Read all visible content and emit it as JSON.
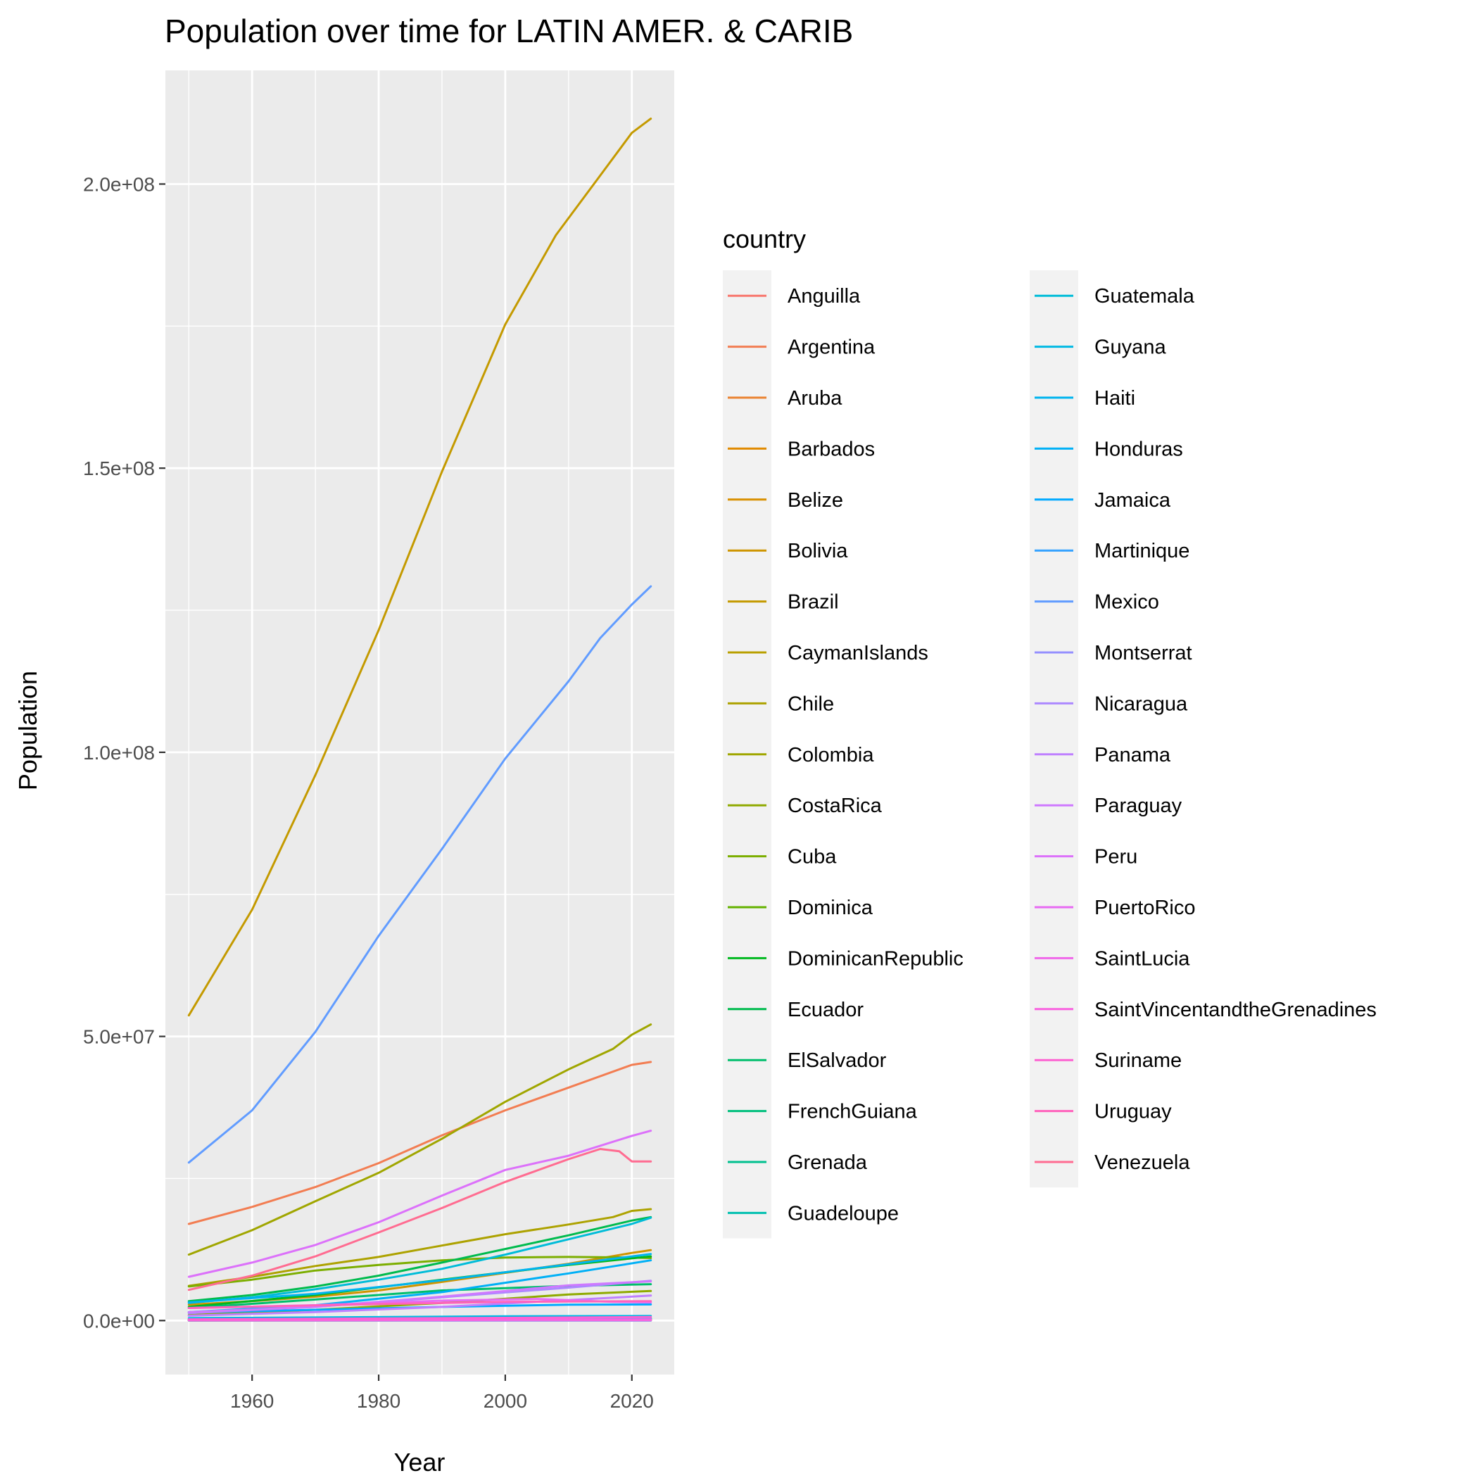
{
  "chart_data": {
    "type": "line",
    "title": "Population over time for LATIN AMER. & CARIB",
    "xlabel": "Year",
    "ylabel": "Population",
    "xlim": [
      1946.3,
      2026.7
    ],
    "ylim": [
      -9500000,
      220000000
    ],
    "x_ticks": [
      1960,
      1980,
      2000,
      2020
    ],
    "x_tick_labels": [
      "1960",
      "1980",
      "2000",
      "2020"
    ],
    "y_ticks": [
      0,
      50000000,
      100000000,
      150000000,
      200000000
    ],
    "y_tick_labels": [
      "0.0e+00",
      "5.0e+07",
      "1.0e+08",
      "1.5e+08",
      "2.0e+08"
    ],
    "grid": true,
    "legend_title": "country",
    "legend_position": "right",
    "legend_columns": 2,
    "series": [
      {
        "name": "Anguilla",
        "color": "#F8766D",
        "x": [
          1950,
          1990,
          2023
        ],
        "y": [
          6000,
          9000,
          16000
        ]
      },
      {
        "name": "Argentina",
        "color": "#F27D52",
        "x": [
          1950,
          1960,
          1970,
          1980,
          1990,
          2000,
          2010,
          2020,
          2023
        ],
        "y": [
          17000000,
          20000000,
          23500000,
          27700000,
          32600000,
          37000000,
          41000000,
          45000000,
          45500000
        ]
      },
      {
        "name": "Aruba",
        "color": "#EA8331",
        "x": [
          1950,
          2000,
          2023
        ],
        "y": [
          50000,
          90000,
          106000
        ]
      },
      {
        "name": "Barbados",
        "color": "#E18A00",
        "x": [
          1950,
          2000,
          2023
        ],
        "y": [
          210000,
          265000,
          282000
        ]
      },
      {
        "name": "Belize",
        "color": "#D89000",
        "x": [
          1950,
          1980,
          2000,
          2023
        ],
        "y": [
          70000,
          145000,
          250000,
          410000
        ]
      },
      {
        "name": "Bolivia",
        "color": "#CE9500",
        "x": [
          1950,
          1960,
          1970,
          1980,
          1990,
          2000,
          2010,
          2020,
          2023
        ],
        "y": [
          2800000,
          3400000,
          4200000,
          5300000,
          6800000,
          8400000,
          10000000,
          11900000,
          12400000
        ]
      },
      {
        "name": "Brazil",
        "color": "#C49A00",
        "x": [
          1950,
          1960,
          1970,
          1980,
          1990,
          2000,
          2008,
          2015,
          2020,
          2023
        ],
        "y": [
          53700000,
          72300000,
          96000000,
          121500000,
          149400000,
          175300000,
          191000000,
          201500000,
          209000000,
          211500000
        ]
      },
      {
        "name": "CaymanIslands",
        "color": "#B9A000",
        "x": [
          1950,
          2000,
          2023
        ],
        "y": [
          6000,
          40000,
          70000
        ]
      },
      {
        "name": "Chile",
        "color": "#ADA200",
        "x": [
          1950,
          1960,
          1970,
          1980,
          1990,
          2000,
          2010,
          2017,
          2020,
          2023
        ],
        "y": [
          6100000,
          7700000,
          9600000,
          11200000,
          13200000,
          15200000,
          16900000,
          18200000,
          19300000,
          19600000
        ]
      },
      {
        "name": "Colombia",
        "color": "#A0A600",
        "x": [
          1950,
          1960,
          1970,
          1980,
          1990,
          2000,
          2010,
          2017,
          2020,
          2023
        ],
        "y": [
          11600000,
          15900000,
          21000000,
          26000000,
          32000000,
          38500000,
          44200000,
          47800000,
          50300000,
          52100000
        ]
      },
      {
        "name": "CostaRica",
        "color": "#8FAA00",
        "x": [
          1950,
          1970,
          1990,
          2010,
          2023
        ],
        "y": [
          960000,
          1900000,
          3100000,
          4600000,
          5200000
        ]
      },
      {
        "name": "Cuba",
        "color": "#7CAE00",
        "x": [
          1950,
          1960,
          1970,
          1980,
          1990,
          2000,
          2010,
          2020,
          2023
        ],
        "y": [
          6000000,
          7200000,
          8800000,
          9800000,
          10600000,
          11100000,
          11200000,
          11100000,
          11000000
        ]
      },
      {
        "name": "Dominica",
        "color": "#64B200",
        "x": [
          1950,
          2000,
          2023
        ],
        "y": [
          52000,
          70000,
          72000
        ]
      },
      {
        "name": "DominicanRepublic",
        "color": "#00B81F",
        "x": [
          1950,
          1970,
          1990,
          2010,
          2023
        ],
        "y": [
          2400000,
          4500000,
          7200000,
          9800000,
          11300000
        ]
      },
      {
        "name": "Ecuador",
        "color": "#00BB4E",
        "x": [
          1950,
          1960,
          1970,
          1980,
          1990,
          2000,
          2010,
          2020,
          2023
        ],
        "y": [
          3400000,
          4500000,
          6000000,
          7900000,
          10200000,
          12600000,
          15000000,
          17600000,
          18200000
        ]
      },
      {
        "name": "ElSalvador",
        "color": "#00BE6C",
        "x": [
          1950,
          1970,
          1990,
          2010,
          2023
        ],
        "y": [
          2200000,
          3700000,
          5300000,
          6100000,
          6400000
        ]
      },
      {
        "name": "FrenchGuiana",
        "color": "#00BF7D",
        "x": [
          1950,
          2000,
          2023
        ],
        "y": [
          25000,
          165000,
          300000
        ]
      },
      {
        "name": "Grenada",
        "color": "#00C08E",
        "x": [
          1950,
          2000,
          2023
        ],
        "y": [
          75000,
          102000,
          126000
        ]
      },
      {
        "name": "Guadeloupe",
        "color": "#00C0AF",
        "x": [
          1950,
          2000,
          2023
        ],
        "y": [
          210000,
          390000,
          395000
        ]
      },
      {
        "name": "Guatemala",
        "color": "#00BCD8",
        "x": [
          1950,
          1960,
          1970,
          1980,
          1990,
          2000,
          2010,
          2020,
          2023
        ],
        "y": [
          3100000,
          4100000,
          5500000,
          7200000,
          9100000,
          11600000,
          14300000,
          17000000,
          18100000
        ]
      },
      {
        "name": "Guyana",
        "color": "#00B9E3",
        "x": [
          1950,
          2000,
          2023
        ],
        "y": [
          420000,
          750000,
          810000
        ]
      },
      {
        "name": "Haiti",
        "color": "#00B4EF",
        "x": [
          1950,
          1970,
          1990,
          2010,
          2023
        ],
        "y": [
          3200000,
          4700000,
          7100000,
          9900000,
          11700000
        ]
      },
      {
        "name": "Honduras",
        "color": "#00B0F6",
        "x": [
          1950,
          1970,
          1990,
          2010,
          2023
        ],
        "y": [
          1500000,
          2700000,
          5000000,
          8300000,
          10600000
        ]
      },
      {
        "name": "Jamaica",
        "color": "#00A9FF",
        "x": [
          1950,
          1970,
          1990,
          2010,
          2023
        ],
        "y": [
          1400000,
          1900000,
          2400000,
          2800000,
          2830000
        ]
      },
      {
        "name": "Martinique",
        "color": "#35A2FF",
        "x": [
          1950,
          2000,
          2023
        ],
        "y": [
          220000,
          385000,
          360000
        ]
      },
      {
        "name": "Mexico",
        "color": "#619CFF",
        "x": [
          1950,
          1960,
          1970,
          1980,
          1990,
          2000,
          2010,
          2015,
          2020,
          2023
        ],
        "y": [
          27800000,
          37000000,
          50800000,
          67700000,
          83000000,
          98900000,
          112500000,
          120100000,
          126000000,
          129200000
        ]
      },
      {
        "name": "Montserrat",
        "color": "#9590FF",
        "x": [
          1950,
          2000,
          2023
        ],
        "y": [
          13000,
          5000,
          4400
        ]
      },
      {
        "name": "Nicaragua",
        "color": "#AC88FF",
        "x": [
          1950,
          1970,
          1990,
          2010,
          2023
        ],
        "y": [
          1300000,
          2400000,
          4100000,
          5800000,
          7000000
        ]
      },
      {
        "name": "Panama",
        "color": "#BF80FF",
        "x": [
          1950,
          1970,
          1990,
          2010,
          2023
        ],
        "y": [
          860000,
          1500000,
          2400000,
          3600000,
          4400000
        ]
      },
      {
        "name": "Paraguay",
        "color": "#CE79FF",
        "x": [
          1950,
          1970,
          1990,
          2010,
          2023
        ],
        "y": [
          1500000,
          2400000,
          4200000,
          6200000,
          6900000
        ]
      },
      {
        "name": "Peru",
        "color": "#DC71FA",
        "x": [
          1950,
          1960,
          1970,
          1980,
          1990,
          2000,
          2010,
          2020,
          2023
        ],
        "y": [
          7700000,
          10200000,
          13300000,
          17300000,
          22000000,
          26500000,
          29000000,
          32500000,
          33400000
        ]
      },
      {
        "name": "PuertoRico",
        "color": "#E76BF3",
        "x": [
          1950,
          1970,
          1990,
          2005,
          2017,
          2023
        ],
        "y": [
          2200000,
          2700000,
          3500000,
          3800000,
          3300000,
          3200000
        ]
      },
      {
        "name": "SaintLucia",
        "color": "#F066EA",
        "x": [
          1950,
          2000,
          2023
        ],
        "y": [
          83000,
          156000,
          180000
        ]
      },
      {
        "name": "SaintVincentandtheGrenadines",
        "color": "#F863DF",
        "x": [
          1950,
          2000,
          2023
        ],
        "y": [
          67000,
          108000,
          104000
        ]
      },
      {
        "name": "Suriname",
        "color": "#FD61D1",
        "x": [
          1950,
          2000,
          2023
        ],
        "y": [
          210000,
          470000,
          620000
        ]
      },
      {
        "name": "Uruguay",
        "color": "#FF62BC",
        "x": [
          1950,
          1980,
          2000,
          2023
        ],
        "y": [
          2200000,
          2900000,
          3300000,
          3420000
        ]
      },
      {
        "name": "Venezuela",
        "color": "#FF6C91",
        "x": [
          1950,
          1960,
          1970,
          1980,
          1990,
          2000,
          2010,
          2015,
          2018,
          2020,
          2023
        ],
        "y": [
          5400000,
          7900000,
          11300000,
          15500000,
          19800000,
          24400000,
          28400000,
          30200000,
          29800000,
          28000000,
          28000000
        ]
      }
    ]
  }
}
